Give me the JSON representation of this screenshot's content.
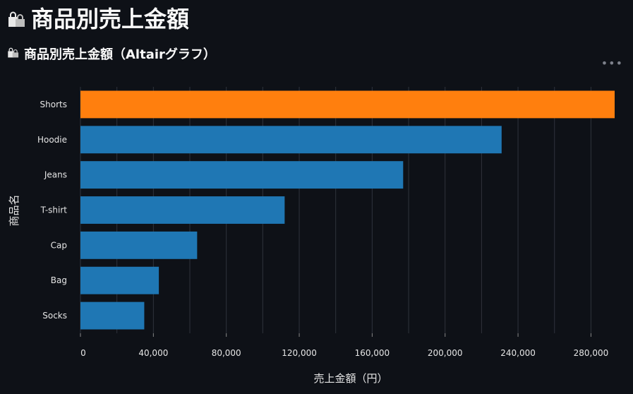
{
  "header": {
    "title": "商品別売上金額",
    "title_icon": "shopping-bags-icon"
  },
  "section": {
    "subtitle": "商品別売上金額（Altairグラフ）",
    "subtitle_icon": "shopping-bags-icon",
    "menu_icon": "more-horizontal-icon",
    "menu_label": "•••"
  },
  "chart_data": {
    "type": "bar",
    "orientation": "horizontal",
    "categories": [
      "Shorts",
      "Hoodie",
      "Jeans",
      "T-shirt",
      "Cap",
      "Bag",
      "Socks"
    ],
    "values": [
      293000,
      231000,
      177000,
      112000,
      64000,
      43000,
      35000
    ],
    "highlight_category": "Shorts",
    "colors": {
      "default": "#1f77b4",
      "highlight": "#ff7f0e",
      "grid": "#2f333c"
    },
    "xlabel": "売上金額（円）",
    "ylabel": "商品名",
    "xlim": [
      0,
      293000
    ],
    "xticks": [
      0,
      40000,
      80000,
      120000,
      160000,
      200000,
      240000,
      280000
    ],
    "xtick_labels": [
      "0",
      "40,000",
      "80,000",
      "120,000",
      "160,000",
      "200,000",
      "240,000",
      "280,000"
    ],
    "grid": true
  }
}
